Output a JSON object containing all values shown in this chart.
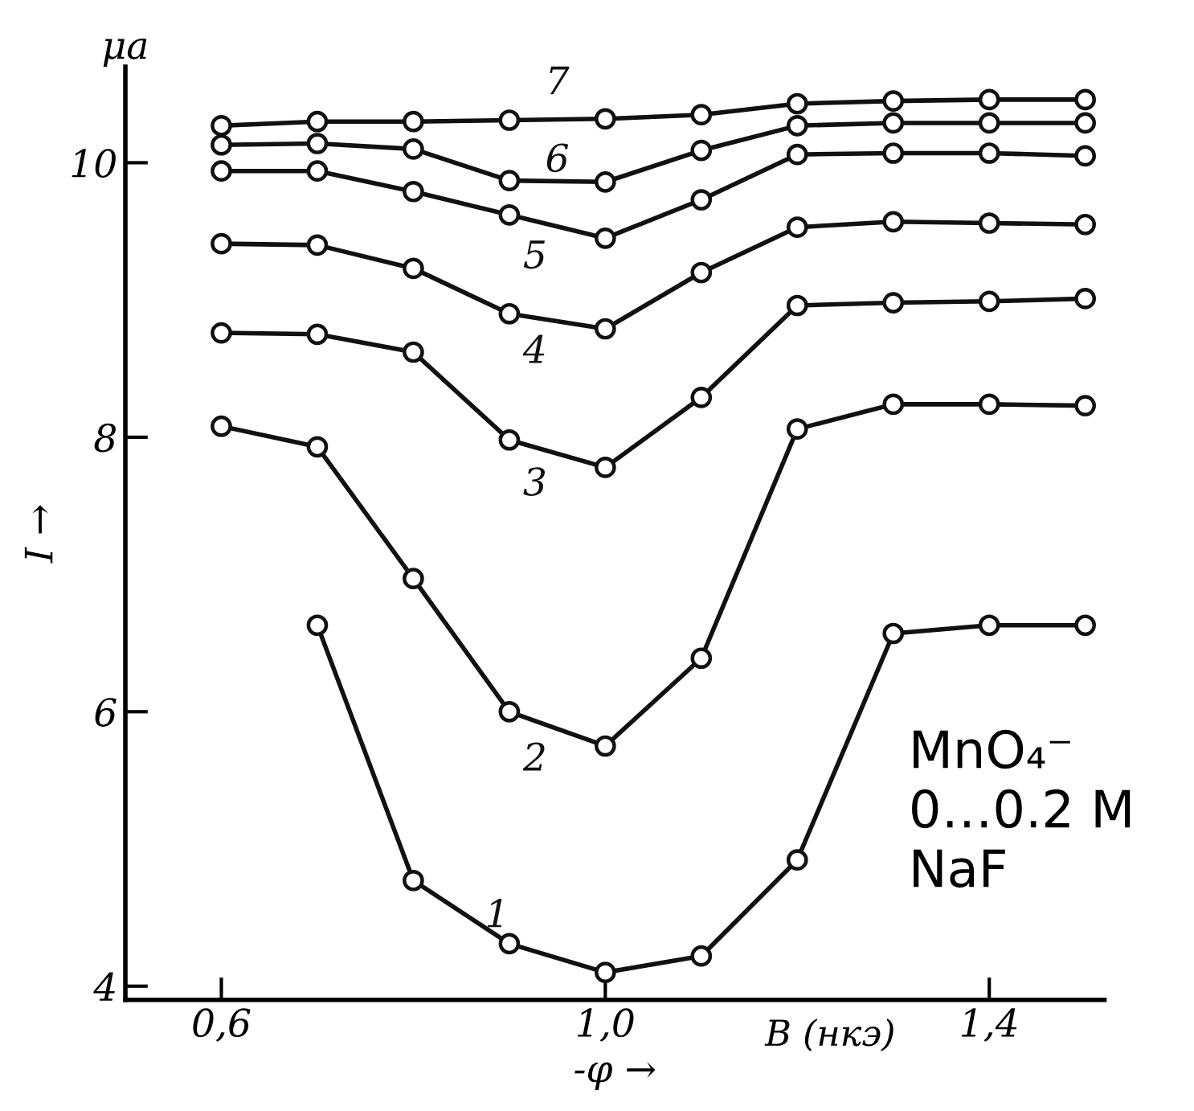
{
  "chart_data": {
    "type": "line",
    "xlabel": "-φ →",
    "ylabel": "I →",
    "x": [
      0.6,
      0.7,
      0.8,
      0.9,
      1.0,
      1.1,
      1.2,
      1.3,
      1.4,
      1.5
    ],
    "series": [
      {
        "name": "1",
        "color": "#111111",
        "values": [
          null,
          6.63,
          4.77,
          4.31,
          4.1,
          4.22,
          4.92,
          6.57,
          6.63,
          6.63
        ]
      },
      {
        "name": "2",
        "color": "#111111",
        "values": [
          8.08,
          7.93,
          6.97,
          6.0,
          5.75,
          6.39,
          8.06,
          8.24,
          8.24,
          8.23
        ]
      },
      {
        "name": "3",
        "color": "#111111",
        "values": [
          8.76,
          8.75,
          8.62,
          7.98,
          7.78,
          8.29,
          8.96,
          8.98,
          8.99,
          9.01
        ]
      },
      {
        "name": "4",
        "color": "#111111",
        "values": [
          9.41,
          9.4,
          9.23,
          8.9,
          8.79,
          9.2,
          9.53,
          9.57,
          9.56,
          9.55
        ]
      },
      {
        "name": "5",
        "color": "#111111",
        "values": [
          9.94,
          9.94,
          9.79,
          9.62,
          9.45,
          9.73,
          10.06,
          10.07,
          10.07,
          10.05
        ]
      },
      {
        "name": "6",
        "color": "#111111",
        "values": [
          10.13,
          10.14,
          10.1,
          9.87,
          9.86,
          10.09,
          10.27,
          10.29,
          10.29,
          10.29
        ]
      },
      {
        "name": "7",
        "color": "#111111",
        "values": [
          10.27,
          10.3,
          10.3,
          10.31,
          10.32,
          10.35,
          10.43,
          10.45,
          10.46,
          10.46
        ]
      }
    ],
    "xlim": [
      0.5,
      1.52
    ],
    "ylim": [
      3.9,
      10.7
    ],
    "xticks": [
      {
        "value": 0.6,
        "label": "0,6"
      },
      {
        "value": 1.0,
        "label": "1,0"
      },
      {
        "value": 1.4,
        "label": "1,4"
      }
    ],
    "yticks": [
      4,
      6,
      8,
      10
    ],
    "marker": "circle",
    "line_style": "solid",
    "grid": false,
    "legend": false,
    "annotations": [
      "μa",
      "В (нкэ)",
      "MnO₄⁻\n0…0.2 M\nNaF"
    ]
  }
}
